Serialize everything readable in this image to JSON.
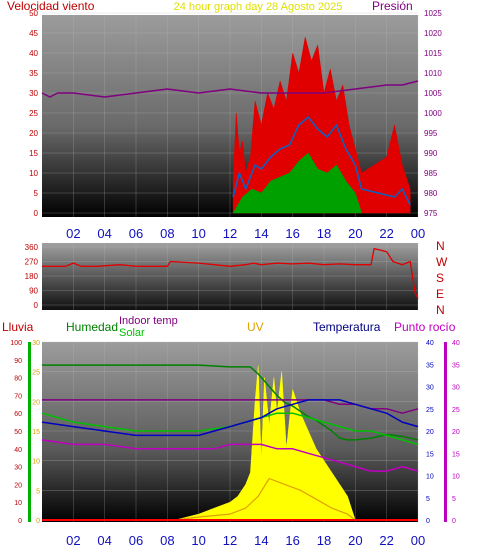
{
  "colors": {
    "wind": "#e00000",
    "avg_wind": "#1060c0",
    "gust_low": "#00a000",
    "pressure": "#800080",
    "dir": "#e00000",
    "rain": "#ff0000",
    "humidity": "#008000",
    "indoor": "#800080",
    "solar": "#00c000",
    "uv": "#e0a000",
    "temp": "#0000c0",
    "dew": "#c000c0",
    "hour_label": "#1010c0"
  },
  "top": {
    "left_title": "Velocidad viento",
    "center_title": "24 hour graph day   28 Agosto 2025",
    "right_title": "Presión"
  },
  "mid": {
    "compass": [
      "N",
      "W",
      "S",
      "E",
      "N"
    ]
  },
  "bottom": {
    "lluvia": "Lluvia",
    "humedad": "Humedad",
    "indoor": "Indoor temp",
    "solar": "Solar",
    "uv": "UV",
    "temperatura": "Temperatura",
    "rocio": "Punto rocío"
  },
  "chart_data": [
    {
      "type": "line",
      "x_ticks": [
        "02",
        "04",
        "06",
        "08",
        "10",
        "12",
        "14",
        "16",
        "18",
        "20",
        "22",
        "00"
      ],
      "y_left_ticks": [
        0,
        5,
        10,
        15,
        20,
        25,
        30,
        35,
        40,
        45,
        50
      ],
      "y_right_ticks": [
        975,
        980,
        985,
        990,
        995,
        1000,
        1005,
        1010,
        1015,
        1020,
        1025
      ],
      "ylim_left": [
        0,
        50
      ],
      "ylim_right": [
        975,
        1025
      ],
      "series": [
        {
          "values_hours": [
            12.2,
            12.4,
            12.6,
            12.8,
            13.0,
            13.3,
            13.6,
            14.0,
            14.4,
            14.8,
            15.2,
            15.6,
            16.0,
            16.4,
            16.8,
            17.2,
            17.6,
            18.0,
            18.4,
            18.8,
            19.2,
            19.6,
            20.0,
            20.4,
            22.0,
            22.5,
            23.0,
            23.5
          ],
          "values": [
            8,
            25,
            15,
            18,
            10,
            14,
            28,
            22,
            30,
            26,
            33,
            28,
            40,
            35,
            44,
            38,
            42,
            30,
            36,
            28,
            32,
            22,
            16,
            10,
            14,
            22,
            12,
            6
          ]
        },
        {
          "values_hours": [
            12.2,
            12.6,
            13.0,
            13.6,
            14.0,
            14.6,
            15.2,
            15.8,
            16.4,
            17.0,
            17.6,
            18.2,
            18.8,
            19.4,
            20.0,
            20.4,
            22.5,
            23.0,
            23.5
          ],
          "values": [
            4,
            10,
            6,
            12,
            11,
            14,
            16,
            17,
            22,
            24,
            21,
            19,
            22,
            16,
            12,
            6,
            4,
            6,
            2
          ]
        },
        {
          "values_hours": [
            12.2,
            12.8,
            13.4,
            14.0,
            14.6,
            15.2,
            15.8,
            16.4,
            17.0,
            17.6,
            18.2,
            18.8,
            19.4,
            20.0,
            20.4
          ],
          "values": [
            0,
            4,
            6,
            5,
            8,
            9,
            10,
            13,
            15,
            11,
            10,
            12,
            8,
            5,
            0
          ]
        },
        {
          "values_hours": [
            0,
            0.5,
            1,
            2,
            4,
            6,
            8,
            10,
            12,
            14,
            16,
            18,
            20,
            22,
            23,
            24
          ],
          "values": [
            1005,
            1004,
            1005,
            1005,
            1004,
            1005,
            1006,
            1005,
            1006,
            1005,
            1005,
            1005,
            1006,
            1007,
            1007,
            1008
          ]
        }
      ]
    },
    {
      "type": "line",
      "y_ticks": [
        0,
        90,
        180,
        270,
        360
      ],
      "ylim": [
        0,
        360
      ],
      "series": [
        {
          "values_hours": [
            0,
            1.5,
            2.0,
            2.5,
            3.5,
            5.0,
            6.0,
            7.0,
            8.0,
            8.2,
            10.0,
            11.0,
            12.0,
            13.0,
            13.5,
            14.0,
            15.0,
            16.0,
            17.0,
            18.0,
            19.0,
            20.0,
            21.0,
            21.2,
            22.0,
            22.4,
            23.0,
            23.5,
            23.8,
            24.0
          ],
          "values": [
            240,
            240,
            260,
            240,
            240,
            250,
            240,
            240,
            240,
            270,
            260,
            250,
            240,
            250,
            260,
            250,
            260,
            255,
            260,
            250,
            255,
            250,
            250,
            350,
            330,
            270,
            250,
            270,
            80,
            40
          ]
        }
      ]
    },
    {
      "type": "line",
      "x_ticks": [
        "02",
        "04",
        "06",
        "08",
        "10",
        "12",
        "14",
        "16",
        "18",
        "20",
        "22",
        "00"
      ],
      "y_rain_ticks": [
        0,
        10,
        20,
        30,
        40,
        50,
        60,
        70,
        80,
        90,
        100
      ],
      "y_uv_ticks": [
        0,
        5,
        10,
        15,
        20,
        25,
        30
      ],
      "y_right_ticks": [
        0,
        5,
        10,
        15,
        20,
        25,
        30,
        35,
        40
      ],
      "ylim_left": [
        0,
        100
      ],
      "ylim_uv": [
        0,
        30
      ],
      "ylim_right": [
        0,
        40
      ],
      "series": [
        {
          "values_hours": [
            0,
            2,
            4,
            6,
            8,
            10,
            12,
            12.8,
            13.3,
            13.8,
            14.4,
            15.0,
            15.5,
            16.0,
            16.5,
            17.0,
            17.5,
            18.0,
            18.5,
            19.0,
            19.5,
            20.0,
            21.0,
            22.0,
            23.0,
            24.0
          ],
          "values": [
            87,
            87,
            87,
            87,
            87,
            87,
            86,
            86,
            86,
            82,
            76,
            70,
            66,
            64,
            61,
            58,
            56,
            53,
            50,
            46,
            45,
            45,
            46,
            48,
            47,
            45
          ]
        },
        {
          "values_hours": [
            0,
            2,
            4,
            6,
            8,
            10,
            12,
            13,
            14,
            15,
            16,
            17,
            18,
            19,
            20,
            21,
            22,
            23,
            24
          ],
          "values": [
            27,
            27,
            27,
            27,
            27,
            27,
            27,
            27,
            27,
            27,
            27,
            27,
            27,
            26,
            26,
            25,
            25,
            24,
            25
          ]
        },
        {
          "values_hours": [
            0,
            2,
            4,
            6,
            8,
            10,
            12,
            13,
            14,
            15,
            16,
            17,
            18,
            19,
            20,
            21,
            22,
            23,
            24
          ],
          "values": [
            24,
            22,
            21,
            20,
            20,
            20,
            21,
            22,
            23,
            24,
            24,
            23,
            22,
            21,
            20,
            20,
            19,
            18,
            17
          ]
        },
        {
          "values_hours": [
            0,
            2,
            4,
            6,
            8,
            10,
            11,
            12,
            13,
            14,
            14.5,
            15,
            16,
            17,
            18,
            19,
            20,
            21,
            22,
            23,
            24
          ],
          "values": [
            22,
            21,
            20,
            19,
            19,
            19,
            20,
            21,
            22,
            23,
            24,
            25,
            26,
            27,
            27,
            27,
            26,
            25,
            24,
            22,
            21
          ]
        },
        {
          "values_hours": [
            0,
            2,
            4,
            6,
            8,
            10,
            11,
            12,
            13,
            14,
            15,
            16,
            17,
            18,
            19,
            20,
            21,
            22,
            23,
            24
          ],
          "values": [
            18,
            17,
            17,
            16,
            16,
            16,
            16,
            17,
            17,
            17,
            16,
            16,
            15,
            14,
            13,
            12,
            11,
            11,
            12,
            11
          ]
        },
        {
          "values_hours": [
            0,
            8.5,
            10,
            11,
            12,
            12.5,
            13,
            13.3,
            13.6,
            13.8,
            14.0,
            14.2,
            14.5,
            14.8,
            15.0,
            15.3,
            15.6,
            16.0,
            16.5,
            17.0,
            17.5,
            18.0,
            18.5,
            19.0,
            19.5,
            20.0,
            24
          ],
          "values": [
            0,
            0,
            1,
            2,
            3,
            4,
            6,
            8,
            20,
            26,
            10,
            24,
            16,
            24,
            18,
            25,
            12,
            22,
            18,
            15,
            12,
            10,
            8,
            6,
            4,
            0,
            0
          ]
        },
        {
          "values_hours": [
            0,
            8.5,
            10,
            12,
            13,
            13.8,
            14.5,
            15.5,
            16.5,
            17.5,
            18.5,
            19.5,
            20,
            24
          ],
          "values": [
            0,
            0,
            0.5,
            1,
            2,
            4,
            7,
            6,
            5,
            3.5,
            2,
            1,
            0,
            0
          ]
        },
        {
          "values_hours": [
            0,
            24
          ],
          "values": [
            0,
            0
          ]
        }
      ]
    }
  ]
}
